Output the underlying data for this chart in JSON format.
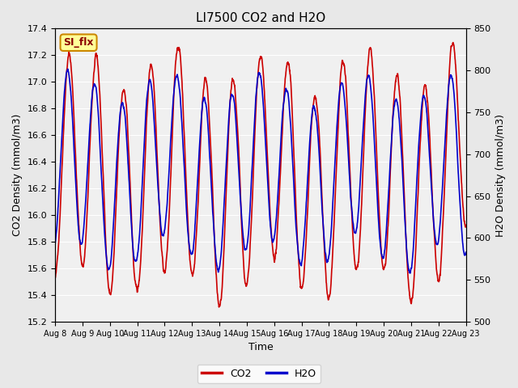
{
  "title": "LI7500 CO2 and H2O",
  "xlabel": "Time",
  "ylabel_left": "CO2 Density (mmol/m3)",
  "ylabel_right": "H2O Density (mmol/m3)",
  "ylim_left": [
    15.2,
    17.4
  ],
  "ylim_right": [
    500,
    850
  ],
  "yticks_left": [
    15.2,
    15.4,
    15.6,
    15.8,
    16.0,
    16.2,
    16.4,
    16.6,
    16.8,
    17.0,
    17.2,
    17.4
  ],
  "yticks_right": [
    500,
    550,
    600,
    650,
    700,
    750,
    800,
    850
  ],
  "xtick_labels": [
    "Aug 8",
    "Aug 9",
    "Aug 10",
    "Aug 11",
    "Aug 12",
    "Aug 13",
    "Aug 14",
    "Aug 15",
    "Aug 16",
    "Aug 17",
    "Aug 18",
    "Aug 19",
    "Aug 20",
    "Aug 21",
    "Aug 22",
    "Aug 23"
  ],
  "co2_color": "#cc0000",
  "h2o_color": "#0000cc",
  "background_color": "#e8e8e8",
  "plot_bg_color": "#f0f0f0",
  "annotation_text": "SI_flx",
  "annotation_bg": "#ffff99",
  "annotation_border": "#cc8800",
  "legend_co2": "CO2",
  "legend_h2o": "H2O",
  "line_width": 1.2,
  "num_days": 15,
  "seed": 42
}
